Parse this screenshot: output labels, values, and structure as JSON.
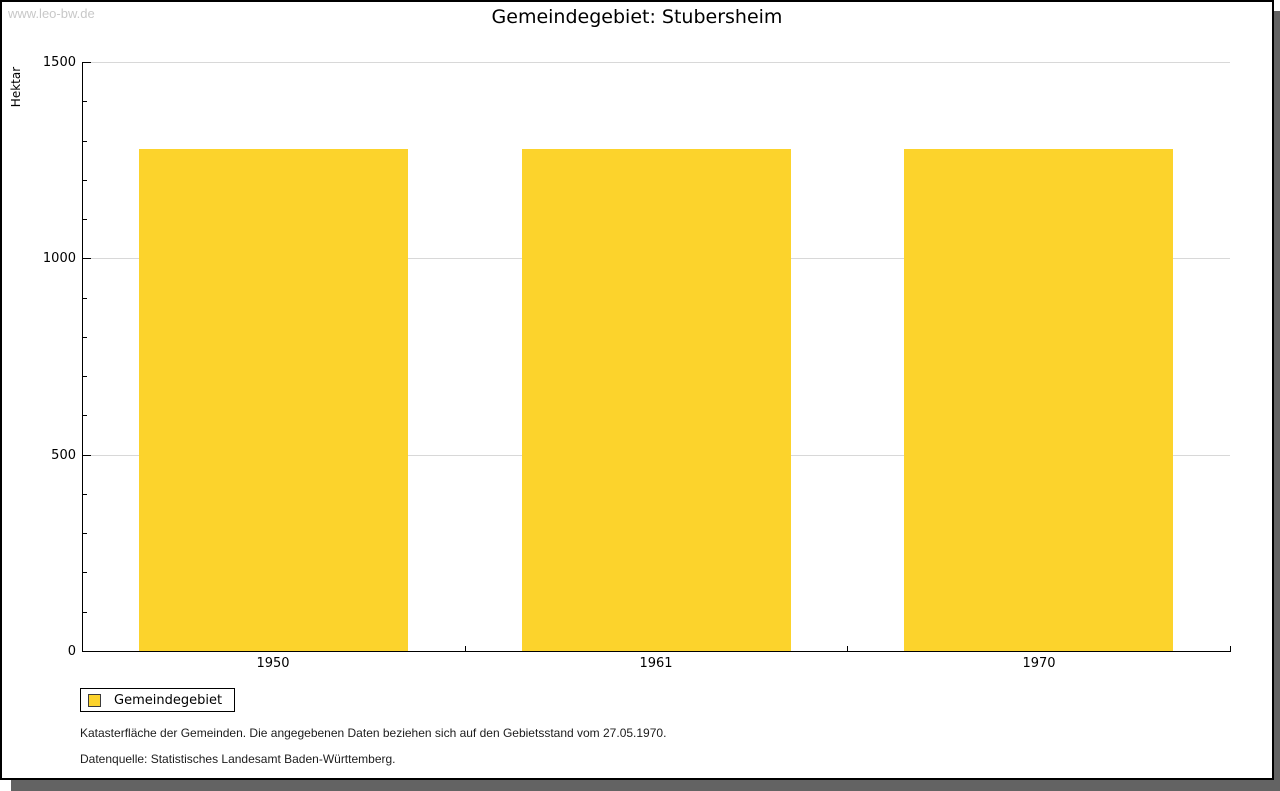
{
  "frame": {
    "watermark": "www.leo-bw.de"
  },
  "header": {
    "title": "Gemeindegebiet: Stubersheim"
  },
  "chart_data": {
    "type": "bar",
    "title": "Gemeindegebiet: Stubersheim",
    "categories": [
      "1950",
      "1961",
      "1970"
    ],
    "series": [
      {
        "name": "Gemeindegebiet",
        "values": [
          1278,
          1278,
          1278
        ]
      }
    ],
    "xlabel": "",
    "ylabel": "Hektar",
    "ylim": [
      0,
      1500
    ],
    "ytick_step": 500,
    "ytick_minor_step": 100,
    "yticklabels": [
      "0",
      "500",
      "1000",
      "1500"
    ],
    "grid": true,
    "legend_entries": [
      "Gemeindegebiet"
    ],
    "legend_position": "below-left"
  },
  "legend": {
    "label": "Gemeindegebiet"
  },
  "footnotes": {
    "line1": "Katasterfläche der Gemeinden. Die angegebenen Daten beziehen sich auf den Gebietsstand vom 27.05.1970.",
    "line2": "Datenquelle: Statistisches Landesamt Baden-Württemberg."
  },
  "colors": {
    "bar": "#FCD32C",
    "gridline": "#D8D8D8",
    "axis": "#000000",
    "text": "#000000",
    "watermark": "#C8C8C8",
    "frame_shadow": "#636363"
  }
}
